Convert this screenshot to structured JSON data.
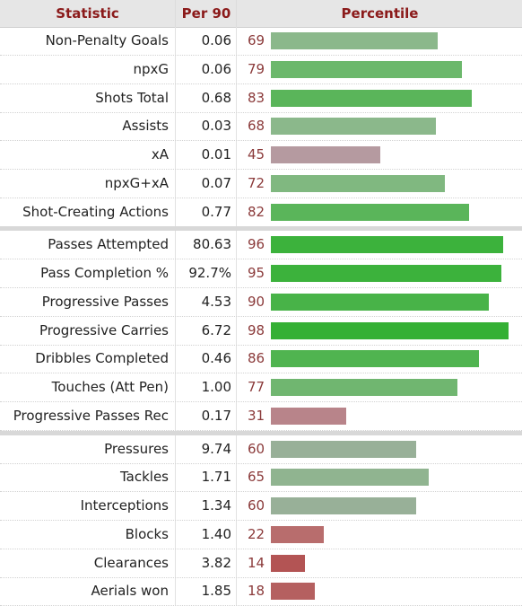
{
  "headers": {
    "stat": "Statistic",
    "per90": "Per 90",
    "percentile": "Percentile"
  },
  "chart_data": {
    "type": "bar",
    "orientation": "horizontal",
    "title": "",
    "xlim": [
      0,
      100
    ],
    "groups": [
      {
        "rows": [
          {
            "stat": "Non-Penalty Goals",
            "per90": "0.06",
            "percentile": 69,
            "color": "#8bb88b"
          },
          {
            "stat": "npxG",
            "per90": "0.06",
            "percentile": 79,
            "color": "#6cb86c"
          },
          {
            "stat": "Shots Total",
            "per90": "0.68",
            "percentile": 83,
            "color": "#5ab55a"
          },
          {
            "stat": "Assists",
            "per90": "0.03",
            "percentile": 68,
            "color": "#8bb88b"
          },
          {
            "stat": "xA",
            "per90": "0.01",
            "percentile": 45,
            "color": "#b59aa0"
          },
          {
            "stat": "npxG+xA",
            "per90": "0.07",
            "percentile": 72,
            "color": "#80b880"
          },
          {
            "stat": "Shot-Creating Actions",
            "per90": "0.77",
            "percentile": 82,
            "color": "#5ab55a"
          }
        ]
      },
      {
        "rows": [
          {
            "stat": "Passes Attempted",
            "per90": "80.63",
            "percentile": 96,
            "color": "#3cb23c"
          },
          {
            "stat": "Pass Completion %",
            "per90": "92.7%",
            "percentile": 95,
            "color": "#3cb23c"
          },
          {
            "stat": "Progressive Passes",
            "per90": "4.53",
            "percentile": 90,
            "color": "#48b348"
          },
          {
            "stat": "Progressive Carries",
            "per90": "6.72",
            "percentile": 98,
            "color": "#34b034"
          },
          {
            "stat": "Dribbles Completed",
            "per90": "0.46",
            "percentile": 86,
            "color": "#50b450"
          },
          {
            "stat": "Touches (Att Pen)",
            "per90": "1.00",
            "percentile": 77,
            "color": "#70b670"
          },
          {
            "stat": "Progressive Passes Rec",
            "per90": "0.17",
            "percentile": 31,
            "color": "#b8848a"
          }
        ]
      },
      {
        "rows": [
          {
            "stat": "Pressures",
            "per90": "9.74",
            "percentile": 60,
            "color": "#98b098"
          },
          {
            "stat": "Tackles",
            "per90": "1.71",
            "percentile": 65,
            "color": "#90b490"
          },
          {
            "stat": "Interceptions",
            "per90": "1.34",
            "percentile": 60,
            "color": "#98b098"
          },
          {
            "stat": "Blocks",
            "per90": "1.40",
            "percentile": 22,
            "color": "#b86d6d"
          },
          {
            "stat": "Clearances",
            "per90": "3.82",
            "percentile": 14,
            "color": "#b35454"
          },
          {
            "stat": "Aerials won",
            "per90": "1.85",
            "percentile": 18,
            "color": "#b56060"
          }
        ]
      }
    ]
  }
}
